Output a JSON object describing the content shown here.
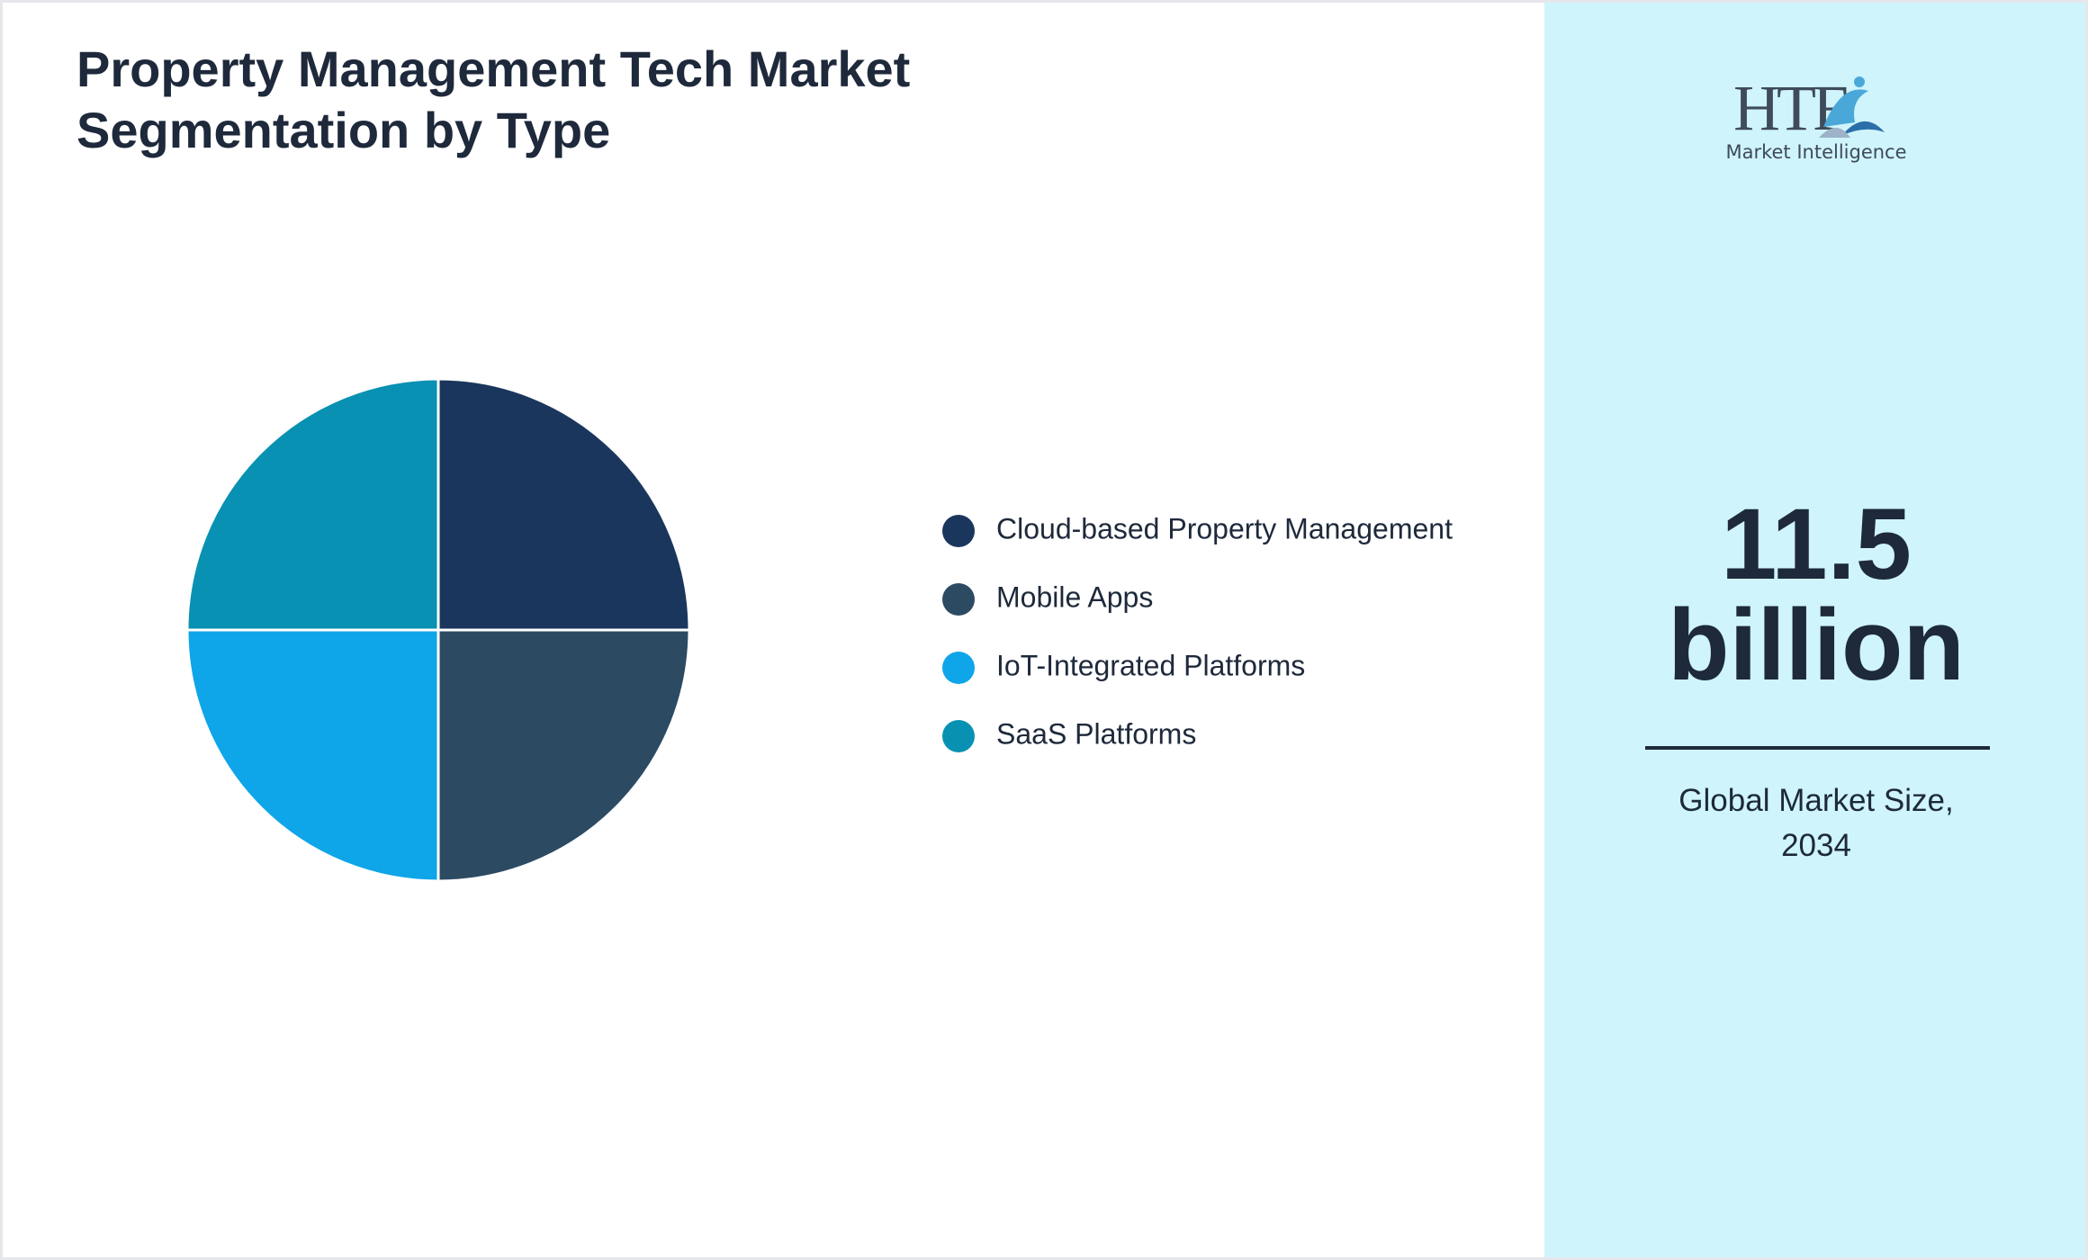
{
  "chart_data": {
    "type": "pie",
    "title": "Property Management Tech Market Segmentation by Type",
    "categories": [
      "Cloud-based Property Management",
      "Mobile Apps",
      "IoT-Integrated Platforms",
      "SaaS Platforms"
    ],
    "values": [
      25,
      25,
      25,
      25
    ],
    "colors": [
      "#1b365d",
      "#2d4a63",
      "#0ea5e9",
      "#0891b2"
    ]
  },
  "sidebar": {
    "logo": {
      "brand": "HTF",
      "tagline": "Market Intelligence"
    },
    "metric": {
      "value": "11.5",
      "unit": "billion",
      "caption": "Global Market Size, 2034"
    }
  }
}
